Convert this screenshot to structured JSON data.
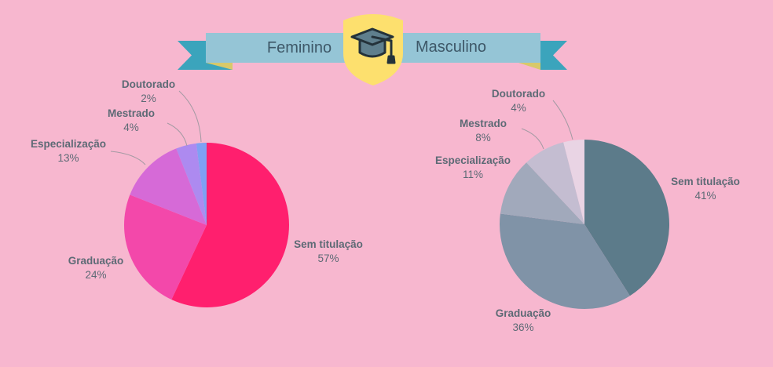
{
  "banner": {
    "left_label": "Feminino",
    "right_label": "Masculino",
    "icon": "graduation-cap-icon"
  },
  "colors": {
    "background": "#f7b7cf",
    "ribbon": "#95c5d6",
    "ribbon_tail": "#3ba4bc",
    "shield": "#fde06e",
    "label_text": "#5d6a75",
    "leader_line": "#a49aa3"
  },
  "chart_data": [
    {
      "type": "pie",
      "panel": "Feminino",
      "categories": [
        "Sem titulação",
        "Graduação",
        "Especialização",
        "Mestrado",
        "Doutorado"
      ],
      "values": [
        57,
        24,
        13,
        4,
        2
      ],
      "labels": [
        "57%",
        "24%",
        "13%",
        "4%",
        "2%"
      ],
      "colors": [
        "#ff1f6e",
        "#f348aa",
        "#d66ad7",
        "#ad8af0",
        "#7fa0f4"
      ]
    },
    {
      "type": "pie",
      "panel": "Masculino",
      "categories": [
        "Sem titulação",
        "Graduação",
        "Especialização",
        "Mestrado",
        "Doutorado"
      ],
      "values": [
        41,
        36,
        11,
        8,
        4
      ],
      "labels": [
        "41%",
        "36%",
        "11%",
        "8%",
        "4%"
      ],
      "colors": [
        "#5c7b8a",
        "#8093a7",
        "#a1a9bb",
        "#c4bdd1",
        "#e9d4e4"
      ]
    }
  ]
}
